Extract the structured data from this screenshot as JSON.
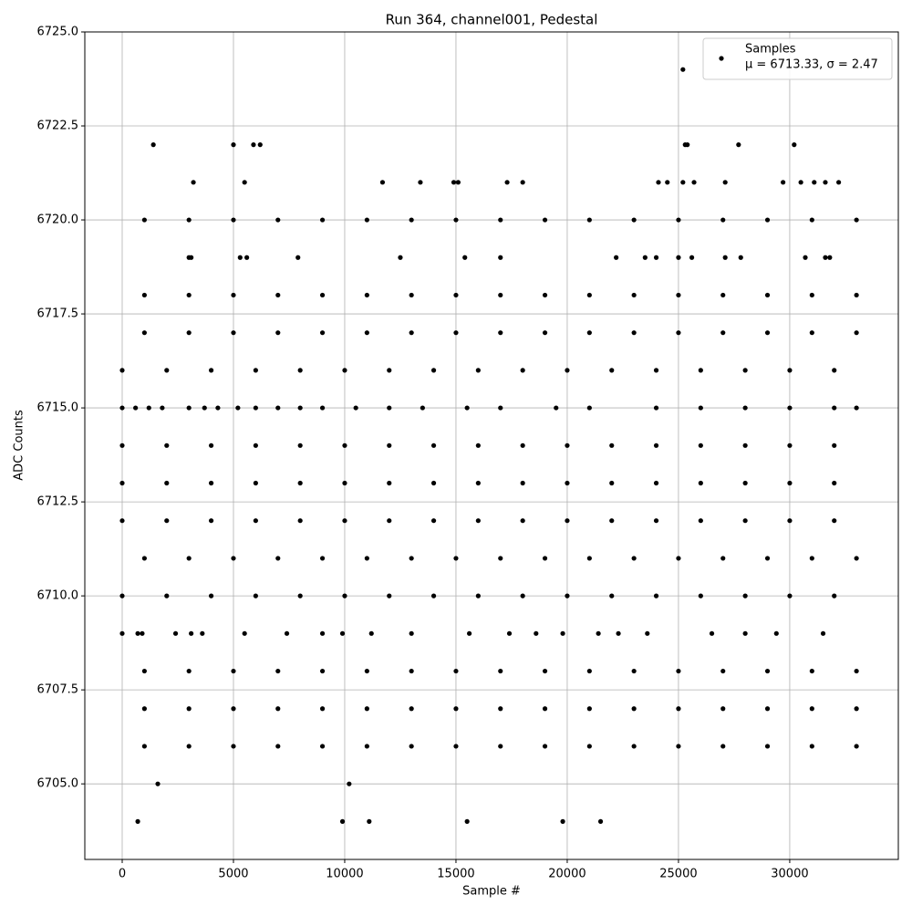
{
  "chart_data": {
    "type": "scatter",
    "title": "Run 364, channel001, Pedestal",
    "x_label": "Sample #",
    "y_label": "ADC Counts",
    "xlim": [
      -1680,
      34880
    ],
    "ylim": [
      6702.99,
      6725
    ],
    "xticks": [
      0,
      5000,
      10000,
      15000,
      20000,
      25000,
      30000
    ],
    "yticks": [
      {
        "value": 6705,
        "label": "6705.0"
      },
      {
        "value": 6707.5,
        "label": "6707.5"
      },
      {
        "value": 6710,
        "label": "6710.0"
      },
      {
        "value": 6712.5,
        "label": "6712.5"
      },
      {
        "value": 6715,
        "label": "6715.0"
      },
      {
        "value": 6717.5,
        "label": "6717.5"
      },
      {
        "value": 6720,
        "label": "6720.0"
      },
      {
        "value": 6722.5,
        "label": "6722.5"
      },
      {
        "value": 6725,
        "label": "6725.0"
      }
    ],
    "grid": true,
    "legend": "upper right",
    "legend_stats": "μ = 6713.33, σ = 2.47",
    "series": [
      {
        "name": "Samples",
        "color": "#000000",
        "x": [
          25200,
          1400,
          5000,
          5900,
          6200,
          25300,
          25400,
          27700,
          30200,
          3200,
          5500,
          11700,
          13400,
          14900,
          15100,
          17300,
          18000,
          24100,
          24500,
          25200,
          25700,
          27100,
          29700,
          30500,
          31100,
          31600,
          32200,
          3000,
          3100,
          5300,
          5600,
          7900,
          12500,
          15400,
          17000,
          22200,
          23500,
          24000,
          25000,
          25600,
          27100,
          27800,
          30700,
          31600,
          31800,
          0,
          700,
          900,
          2400,
          3100,
          3600,
          5500,
          7400,
          9000,
          9900,
          11200,
          13000,
          15600,
          17400,
          18600,
          19800,
          21400,
          22300,
          23600,
          26500,
          28000,
          29400,
          31500,
          1600,
          10200,
          700,
          9900,
          11100,
          15500,
          19800,
          21500,
          0,
          600,
          1200,
          1800,
          3000,
          3700,
          4300,
          5200,
          6000,
          7000,
          8000,
          9000,
          10500,
          12000,
          13500,
          15500,
          17000,
          19500,
          21000,
          24000,
          26000,
          28000,
          30000,
          32000,
          33000,
          0,
          2000,
          4000,
          6000,
          8000,
          10000,
          12000,
          14000,
          16000,
          18000,
          20000,
          22000,
          24000,
          26000,
          28000,
          30000,
          32000,
          0,
          2000,
          4000,
          6000,
          8000,
          10000,
          12000,
          14000,
          16000,
          18000,
          20000,
          22000,
          24000,
          26000,
          28000,
          30000,
          32000,
          0,
          2000,
          4000,
          6000,
          8000,
          10000,
          12000,
          14000,
          16000,
          18000,
          20000,
          22000,
          24000,
          26000,
          28000,
          30000,
          32000,
          0,
          2000,
          4000,
          6000,
          8000,
          10000,
          12000,
          14000,
          16000,
          18000,
          20000,
          22000,
          24000,
          26000,
          28000,
          30000,
          32000,
          0,
          2000,
          4000,
          6000,
          8000,
          10000,
          12000,
          14000,
          16000,
          18000,
          20000,
          22000,
          24000,
          26000,
          28000,
          30000,
          32000,
          1000,
          3000,
          5000,
          7000,
          9000,
          11000,
          13000,
          15000,
          17000,
          19000,
          21000,
          23000,
          25000,
          27000,
          29000,
          31000,
          33000,
          1000,
          3000,
          5000,
          7000,
          9000,
          11000,
          13000,
          15000,
          17000,
          19000,
          21000,
          23000,
          25000,
          27000,
          29000,
          31000,
          33000,
          1000,
          3000,
          5000,
          7000,
          9000,
          11000,
          13000,
          15000,
          17000,
          19000,
          21000,
          23000,
          25000,
          27000,
          29000,
          31000,
          33000,
          1000,
          3000,
          5000,
          7000,
          9000,
          11000,
          13000,
          15000,
          17000,
          19000,
          21000,
          23000,
          25000,
          27000,
          29000,
          31000,
          33000,
          1000,
          3000,
          5000,
          7000,
          9000,
          11000,
          13000,
          15000,
          17000,
          19000,
          21000,
          23000,
          25000,
          27000,
          29000,
          31000,
          33000,
          1000,
          3000,
          5000,
          7000,
          9000,
          11000,
          13000,
          15000,
          17000,
          19000,
          21000,
          23000,
          25000,
          27000,
          29000,
          31000,
          33000,
          1000,
          3000,
          5000,
          7000,
          9000,
          11000,
          13000,
          15000,
          17000,
          19000,
          21000,
          23000,
          25000,
          27000,
          29000,
          31000,
          33000
        ],
        "values": [
          6724,
          6722,
          6722,
          6722,
          6722,
          6722,
          6722,
          6722,
          6722,
          6721,
          6721,
          6721,
          6721,
          6721,
          6721,
          6721,
          6721,
          6721,
          6721,
          6721,
          6721,
          6721,
          6721,
          6721,
          6721,
          6721,
          6721,
          6719,
          6719,
          6719,
          6719,
          6719,
          6719,
          6719,
          6719,
          6719,
          6719,
          6719,
          6719,
          6719,
          6719,
          6719,
          6719,
          6719,
          6719,
          6709,
          6709,
          6709,
          6709,
          6709,
          6709,
          6709,
          6709,
          6709,
          6709,
          6709,
          6709,
          6709,
          6709,
          6709,
          6709,
          6709,
          6709,
          6709,
          6709,
          6709,
          6709,
          6709,
          6705,
          6705,
          6704,
          6704,
          6704,
          6704,
          6704,
          6704,
          6715,
          6715,
          6715,
          6715,
          6715,
          6715,
          6715,
          6715,
          6715,
          6715,
          6715,
          6715,
          6715,
          6715,
          6715,
          6715,
          6715,
          6715,
          6715,
          6715,
          6715,
          6715,
          6715,
          6715,
          6715,
          6710,
          6710,
          6710,
          6710,
          6710,
          6710,
          6710,
          6710,
          6710,
          6710,
          6710,
          6710,
          6710,
          6710,
          6710,
          6710,
          6710,
          6712,
          6712,
          6712,
          6712,
          6712,
          6712,
          6712,
          6712,
          6712,
          6712,
          6712,
          6712,
          6712,
          6712,
          6712,
          6712,
          6712,
          6713,
          6713,
          6713,
          6713,
          6713,
          6713,
          6713,
          6713,
          6713,
          6713,
          6713,
          6713,
          6713,
          6713,
          6713,
          6713,
          6713,
          6714,
          6714,
          6714,
          6714,
          6714,
          6714,
          6714,
          6714,
          6714,
          6714,
          6714,
          6714,
          6714,
          6714,
          6714,
          6714,
          6714,
          6716,
          6716,
          6716,
          6716,
          6716,
          6716,
          6716,
          6716,
          6716,
          6716,
          6716,
          6716,
          6716,
          6716,
          6716,
          6716,
          6716,
          6706,
          6706,
          6706,
          6706,
          6706,
          6706,
          6706,
          6706,
          6706,
          6706,
          6706,
          6706,
          6706,
          6706,
          6706,
          6706,
          6706,
          6707,
          6707,
          6707,
          6707,
          6707,
          6707,
          6707,
          6707,
          6707,
          6707,
          6707,
          6707,
          6707,
          6707,
          6707,
          6707,
          6707,
          6708,
          6708,
          6708,
          6708,
          6708,
          6708,
          6708,
          6708,
          6708,
          6708,
          6708,
          6708,
          6708,
          6708,
          6708,
          6708,
          6708,
          6711,
          6711,
          6711,
          6711,
          6711,
          6711,
          6711,
          6711,
          6711,
          6711,
          6711,
          6711,
          6711,
          6711,
          6711,
          6711,
          6711,
          6717,
          6717,
          6717,
          6717,
          6717,
          6717,
          6717,
          6717,
          6717,
          6717,
          6717,
          6717,
          6717,
          6717,
          6717,
          6717,
          6717,
          6718,
          6718,
          6718,
          6718,
          6718,
          6718,
          6718,
          6718,
          6718,
          6718,
          6718,
          6718,
          6718,
          6718,
          6718,
          6718,
          6718,
          6720,
          6720,
          6720,
          6720,
          6720,
          6720,
          6720,
          6720,
          6720,
          6720,
          6720,
          6720,
          6720,
          6720,
          6720,
          6720,
          6720
        ]
      }
    ]
  }
}
